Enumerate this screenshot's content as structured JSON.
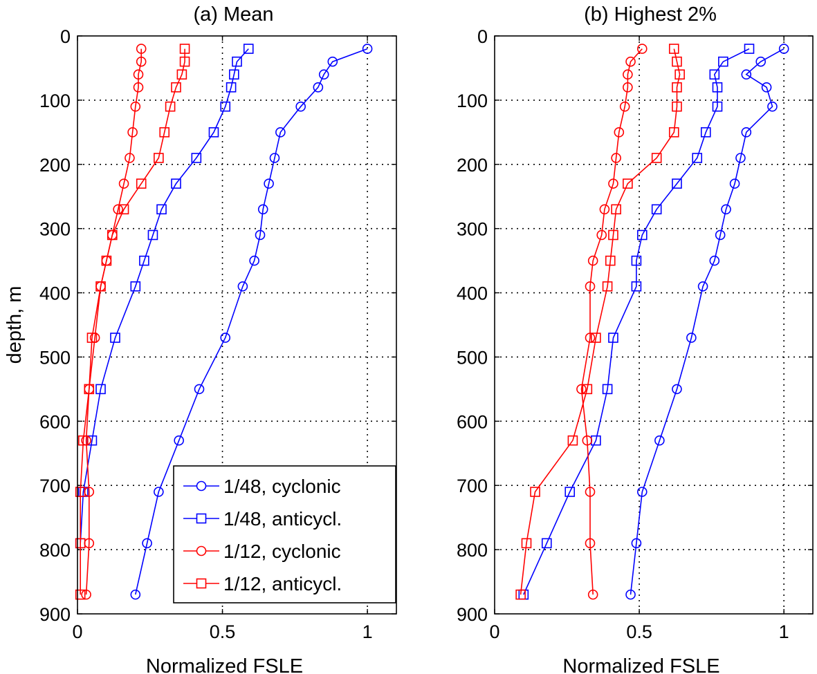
{
  "chart_data": [
    {
      "type": "line",
      "title": "(a) Mean",
      "xlabel": "Normalized FSLE",
      "ylabel": "depth, m",
      "xlim": [
        0,
        1.1
      ],
      "ylim": [
        0,
        900
      ],
      "y_reversed": true,
      "grid": true,
      "xticks": [
        0,
        0.5,
        1
      ],
      "xtick_labels": [
        "0",
        "0.5",
        "1"
      ],
      "yticks": [
        0,
        100,
        200,
        300,
        400,
        500,
        600,
        700,
        800,
        900
      ],
      "ytick_labels": [
        "0",
        "100",
        "200",
        "300",
        "400",
        "500",
        "600",
        "700",
        "800",
        "900"
      ],
      "legend_position": "bottom-right",
      "series": [
        {
          "name": "1/48, cyclonic",
          "color": "#0000ff",
          "marker": "circle",
          "x": [
            1.0,
            0.88,
            0.85,
            0.83,
            0.77,
            0.7,
            0.68,
            0.66,
            0.64,
            0.63,
            0.61,
            0.57,
            0.51,
            0.42,
            0.35,
            0.28,
            0.24,
            0.2
          ],
          "y": [
            20,
            40,
            60,
            80,
            110,
            150,
            190,
            230,
            270,
            310,
            350,
            390,
            470,
            550,
            630,
            710,
            790,
            870
          ]
        },
        {
          "name": "1/48, anticycl.",
          "color": "#0000ff",
          "marker": "square",
          "x": [
            0.59,
            0.55,
            0.54,
            0.53,
            0.51,
            0.47,
            0.41,
            0.34,
            0.29,
            0.26,
            0.23,
            0.2,
            0.13,
            0.08,
            0.05,
            0.02,
            0.01
          ],
          "y": [
            20,
            40,
            60,
            80,
            110,
            150,
            190,
            230,
            270,
            310,
            350,
            390,
            470,
            550,
            630,
            710,
            790
          ]
        },
        {
          "name": "1/12, cyclonic",
          "color": "#ff0000",
          "marker": "circle",
          "x": [
            0.22,
            0.22,
            0.21,
            0.21,
            0.2,
            0.19,
            0.18,
            0.16,
            0.14,
            0.12,
            0.1,
            0.08,
            0.06,
            0.04,
            0.03,
            0.04,
            0.04,
            0.03
          ],
          "y": [
            20,
            40,
            60,
            80,
            110,
            150,
            190,
            230,
            270,
            310,
            350,
            390,
            470,
            550,
            630,
            710,
            790,
            870
          ]
        },
        {
          "name": "1/12, anticycl.",
          "color": "#ff0000",
          "marker": "square",
          "x": [
            0.37,
            0.37,
            0.36,
            0.34,
            0.32,
            0.3,
            0.28,
            0.22,
            0.16,
            0.12,
            0.1,
            0.08,
            0.05,
            0.04,
            0.02,
            0.01,
            0.01,
            0.01
          ],
          "y": [
            20,
            40,
            60,
            80,
            110,
            150,
            190,
            230,
            270,
            310,
            350,
            390,
            470,
            550,
            630,
            710,
            790,
            870
          ]
        }
      ],
      "legend": [
        "1/48, cyclonic",
        "1/48, anticycl.",
        "1/12, cyclonic",
        "1/12, anticycl."
      ]
    },
    {
      "type": "line",
      "title": "(b) Highest 2%",
      "xlabel": "Normalized FSLE",
      "ylabel": "",
      "xlim": [
        0,
        1.1
      ],
      "ylim": [
        0,
        900
      ],
      "y_reversed": true,
      "grid": true,
      "xticks": [
        0,
        0.5,
        1
      ],
      "xtick_labels": [
        "0",
        "0.5",
        "1"
      ],
      "yticks": [
        0,
        100,
        200,
        300,
        400,
        500,
        600,
        700,
        800,
        900
      ],
      "ytick_labels": [
        "0",
        "100",
        "200",
        "300",
        "400",
        "500",
        "600",
        "700",
        "800",
        "900"
      ],
      "series": [
        {
          "name": "1/48, cyclonic",
          "color": "#0000ff",
          "marker": "circle",
          "x": [
            1.0,
            0.92,
            0.87,
            0.94,
            0.96,
            0.87,
            0.85,
            0.83,
            0.8,
            0.78,
            0.76,
            0.72,
            0.68,
            0.63,
            0.57,
            0.51,
            0.49,
            0.47
          ],
          "y": [
            20,
            40,
            60,
            80,
            110,
            150,
            190,
            230,
            270,
            310,
            350,
            390,
            470,
            550,
            630,
            710,
            790,
            870
          ]
        },
        {
          "name": "1/48, anticycl.",
          "color": "#0000ff",
          "marker": "square",
          "x": [
            0.88,
            0.79,
            0.76,
            0.77,
            0.77,
            0.73,
            0.7,
            0.63,
            0.56,
            0.51,
            0.49,
            0.49,
            0.41,
            0.39,
            0.35,
            0.26,
            0.18,
            0.1
          ],
          "y": [
            20,
            40,
            60,
            80,
            110,
            150,
            190,
            230,
            270,
            310,
            350,
            390,
            470,
            550,
            630,
            710,
            790,
            870
          ]
        },
        {
          "name": "1/12, cyclonic",
          "color": "#ff0000",
          "marker": "circle",
          "x": [
            0.51,
            0.47,
            0.46,
            0.46,
            0.45,
            0.43,
            0.42,
            0.41,
            0.38,
            0.37,
            0.34,
            0.33,
            0.33,
            0.3,
            0.32,
            0.33,
            0.33,
            0.34
          ],
          "y": [
            20,
            40,
            60,
            80,
            110,
            150,
            190,
            230,
            270,
            310,
            350,
            390,
            470,
            550,
            630,
            710,
            790,
            870
          ]
        },
        {
          "name": "1/12, anticycl.",
          "color": "#ff0000",
          "marker": "square",
          "x": [
            0.62,
            0.63,
            0.64,
            0.63,
            0.63,
            0.62,
            0.56,
            0.46,
            0.42,
            0.41,
            0.4,
            0.39,
            0.35,
            0.32,
            0.27,
            0.14,
            0.11,
            0.09
          ],
          "y": [
            20,
            40,
            60,
            80,
            110,
            150,
            190,
            230,
            270,
            310,
            350,
            390,
            470,
            550,
            630,
            710,
            790,
            870
          ]
        }
      ]
    }
  ]
}
